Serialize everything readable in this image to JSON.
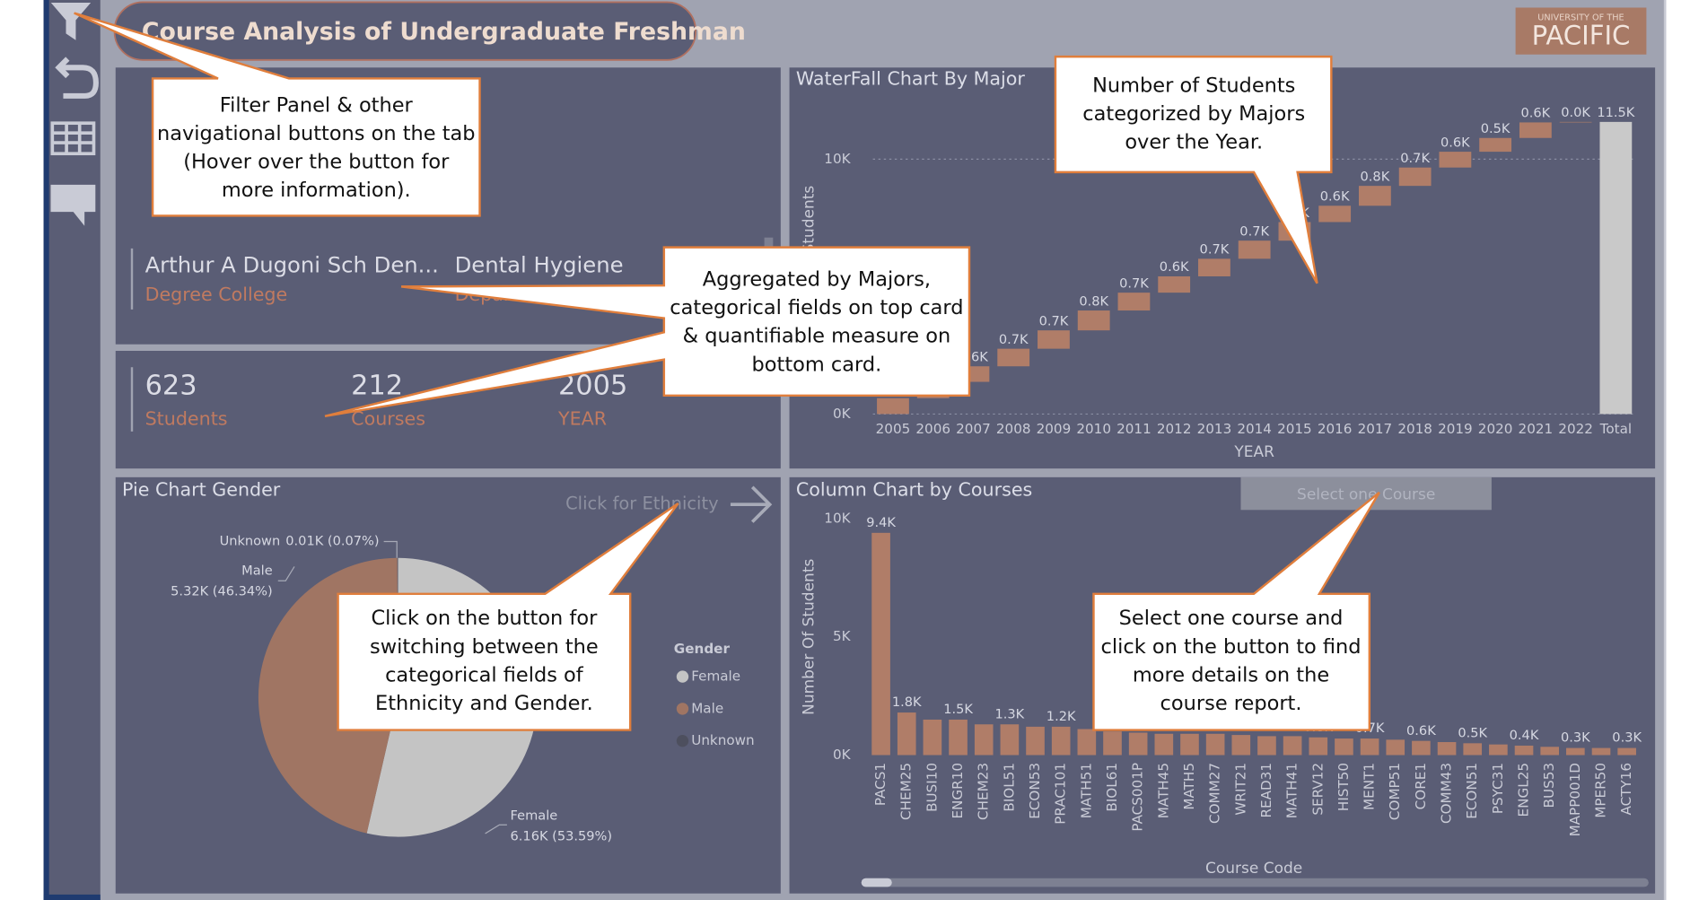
{
  "header": {
    "title": "Course Analysis of Undergraduate Freshman",
    "logo": [
      "UNIVERSITY OF THE",
      "PACIFIC"
    ]
  },
  "filter_card": {
    "items": [
      {
        "value": "Arthur A Dugoni Sch Den...",
        "label": "Degree College"
      },
      {
        "value": "Dental Hygiene",
        "label": "Department"
      }
    ]
  },
  "measure_card": {
    "items": [
      {
        "value": 623,
        "label": "Students"
      },
      {
        "value": 212,
        "label": "Courses"
      },
      {
        "value": 2005,
        "label": "YEAR"
      }
    ]
  },
  "buttons": {
    "ethnicity": "Click for Ethnicity",
    "course": "Select one Course"
  },
  "callouts": [
    {
      "lines": [
        "Filter Panel & other",
        "navigational buttons on the tab",
        "(Hover over the button for",
        "more information)."
      ]
    },
    {
      "lines": [
        "Aggregated by Majors,",
        "categorical fields on top card",
        "& quantifiable measure on",
        "bottom card."
      ]
    },
    {
      "lines": [
        "Number of Students",
        "categorized by Majors",
        "over the Year."
      ]
    },
    {
      "lines": [
        "Click on the button for",
        "switching between the",
        "categorical fields of",
        "Ethnicity and Gender."
      ]
    },
    {
      "lines": [
        "Select one course and",
        "click on the button to find",
        "more details on the",
        "course report."
      ]
    }
  ],
  "chart_data": [
    {
      "type": "waterfall",
      "title": "WaterFall Chart By Major",
      "x_label": "YEAR",
      "y_label": "Number Of Students",
      "categories": [
        "2005",
        "2006",
        "2007",
        "2008",
        "2009",
        "2010",
        "2011",
        "2012",
        "2013",
        "2014",
        "2015",
        "2016",
        "2017",
        "2018",
        "2019",
        "2020",
        "2021",
        "2022",
        "Total"
      ],
      "values": [
        623,
        640,
        610,
        690,
        720,
        780,
        700,
        640,
        690,
        710,
        730,
        640,
        780,
        720,
        620,
        540,
        610,
        20,
        11463
      ],
      "value_labels": [
        "0.6K",
        "0.6K",
        "0.6K",
        "0.7K",
        "0.7K",
        "0.8K",
        "0.7K",
        "0.6K",
        "0.7K",
        "0.7K",
        "0.7K",
        "0.6K",
        "0.8K",
        "0.7K",
        "0.6K",
        "0.5K",
        "0.6K",
        "0.0K",
        "11.5K"
      ],
      "show_total": true,
      "color": "#b07d68",
      "total_color": "#c9c9c9",
      "ylim": [
        0,
        11800
      ],
      "yticks": [
        {
          "value": 0,
          "label": "0K"
        },
        {
          "value": 10000,
          "label": "10K"
        }
      ],
      "grid": true
    },
    {
      "type": "bar",
      "title": "Column Chart by Courses",
      "x_label": "Course Code",
      "y_label": "Number Of Students",
      "categories": [
        "PACS1",
        "CHEM25",
        "BUSI10",
        "ENGR10",
        "CHEM23",
        "BIOL51",
        "ECON53",
        "PRAC101",
        "MATH51",
        "BIOL61",
        "PACS001P",
        "MATH45",
        "MATH5",
        "COMM27",
        "WRIT21",
        "READ31",
        "MATH41",
        "SERV12",
        "HIST50",
        "MENT1",
        "COMP51",
        "CORE1",
        "COMM43",
        "ECON51",
        "PSYC31",
        "ENGL25",
        "BUS53",
        "MAPP001D",
        "MPER50",
        "ACTY16"
      ],
      "values": [
        9400,
        1800,
        1500,
        1500,
        1300,
        1300,
        1200,
        1200,
        1100,
        1000,
        950,
        900,
        900,
        900,
        850,
        800,
        800,
        750,
        700,
        700,
        650,
        600,
        550,
        500,
        450,
        400,
        350,
        300,
        300,
        300
      ],
      "value_labels": [
        "9.4K",
        "1.8K",
        null,
        "1.5K",
        null,
        "1.3K",
        null,
        "1.2K",
        null,
        "1.0K",
        null,
        "0.9K",
        null,
        "0.9K",
        null,
        "0.8K",
        null,
        "0.8K",
        null,
        "0.7K",
        null,
        "0.6K",
        null,
        "0.5K",
        null,
        "0.4K",
        null,
        "0.3K",
        null,
        "0.3K"
      ],
      "color": "#b07d68",
      "ylim": [
        0,
        10000
      ],
      "yticks": [
        {
          "value": 0,
          "label": "0K"
        },
        {
          "value": 5000,
          "label": "5K"
        },
        {
          "value": 10000,
          "label": "10K"
        }
      ],
      "grid": false
    },
    {
      "type": "pie",
      "title": "Pie Chart Gender",
      "categories": [
        "Female",
        "Male",
        "Unknown"
      ],
      "values": [
        53.59,
        46.34,
        0.07
      ],
      "value_labels": [
        "6.16K (53.59%)",
        "5.32K (46.34%)",
        "0.01K (0.07%)"
      ],
      "colors": [
        "#c4c4c4",
        "#a07563",
        "#4d4f5e"
      ],
      "legend_title": "Gender",
      "legend": "right"
    }
  ]
}
